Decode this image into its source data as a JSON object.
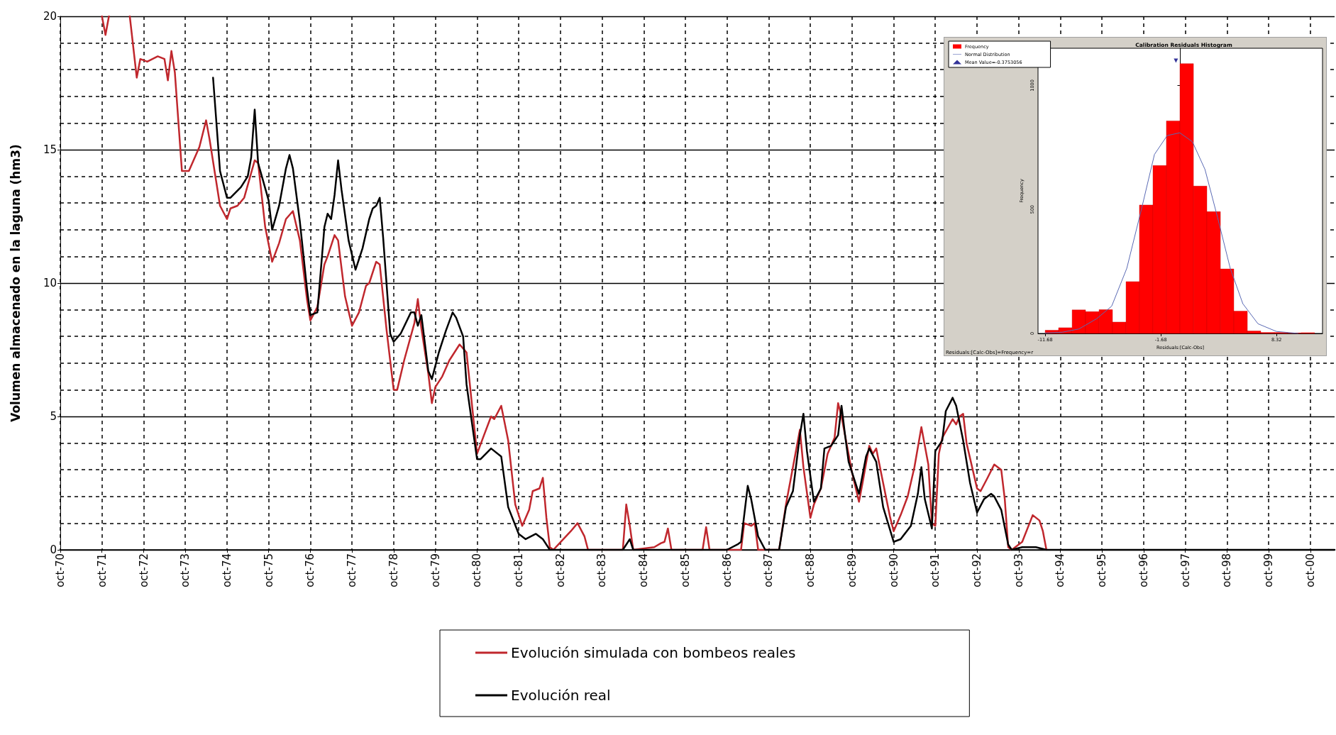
{
  "chart_data": [
    {
      "type": "line",
      "ylabel": "Volumen almacenado en la laguna (hm3)",
      "series": [
        {
          "name": "Evolución simulada con bombeos reales",
          "color": "#c0272d",
          "x": [
            "1971-10",
            "1971-11",
            "1971-12",
            "1972-02",
            "1972-06",
            "1972-08",
            "1972-09",
            "1972-11",
            "1973-02",
            "1973-04",
            "1973-05",
            "1973-06",
            "1973-07",
            "1973-09",
            "1973-11",
            "1974-02",
            "1974-04",
            "1974-05",
            "1974-08",
            "1974-10",
            "1974-11",
            "1975-01",
            "1975-03",
            "1975-06",
            "1975-07",
            "1975-09",
            "1975-11",
            "1976-01",
            "1976-03",
            "1976-05",
            "1976-07",
            "1976-09",
            "1976-10",
            "1976-12",
            "1977-02",
            "1977-03",
            "1977-05",
            "1977-06",
            "1977-08",
            "1977-10",
            "1977-12",
            "1978-02",
            "1978-03",
            "1978-05",
            "1978-06",
            "1978-08",
            "1978-10",
            "1978-11",
            "1979-01",
            "1979-04",
            "1979-05",
            "1979-06",
            "1979-08",
            "1979-09",
            "1979-10",
            "1979-12",
            "1980-02",
            "1980-05",
            "1980-07",
            "1980-10",
            "1980-12",
            "1981-02",
            "1981-03",
            "1981-05",
            "1981-07",
            "1981-09",
            "1981-11",
            "1982-01",
            "1982-02",
            "1982-04",
            "1982-05",
            "1982-06",
            "1982-07",
            "1982-08",
            "1983-01",
            "1983-03",
            "1983-05",
            "1983-06",
            "1984-04",
            "1984-05",
            "1984-06",
            "1984-07",
            "1985-01",
            "1985-03",
            "1985-04",
            "1985-05",
            "1985-06",
            "1986-03",
            "1986-04",
            "1986-05",
            "1987-02",
            "1987-03",
            "1987-05",
            "1987-06",
            "1987-07",
            "1988-01",
            "1988-03",
            "1988-05",
            "1988-07",
            "1988-08",
            "1988-10",
            "1988-11",
            "1989-01",
            "1989-03",
            "1989-05",
            "1989-06",
            "1989-07",
            "1989-10",
            "1989-12",
            "1990-01",
            "1990-03",
            "1990-04",
            "1990-05",
            "1990-07",
            "1990-09",
            "1990-10",
            "1990-12",
            "1991-02",
            "1991-04",
            "1991-06",
            "1991-08",
            "1991-09",
            "1991-10",
            "1991-11",
            "1991-12",
            "1992-03",
            "1992-04",
            "1992-05",
            "1992-06",
            "1992-07",
            "1992-10",
            "1992-11",
            "1993-01",
            "1993-03",
            "1993-05",
            "1993-06",
            "1993-07",
            "1993-08",
            "1993-11",
            "1994-02",
            "1994-04",
            "1994-05",
            "1994-06"
          ],
          "values": [
            20,
            19.3,
            20,
            null,
            20,
            17.7,
            18.4,
            18.3,
            18.5,
            18.4,
            17.6,
            18.7,
            17.9,
            14.2,
            14.2,
            15.1,
            16.1,
            15.4,
            12.9,
            12.4,
            12.8,
            12.9,
            13.2,
            14.6,
            14.5,
            12.1,
            10.8,
            11.5,
            12.4,
            12.7,
            11.6,
            9.4,
            8.6,
            9.1,
            10.7,
            11.0,
            11.8,
            11.6,
            9.5,
            8.4,
            8.9,
            9.9,
            10.0,
            10.8,
            10.7,
            8.2,
            6.0,
            6.0,
            7.1,
            8.5,
            9.4,
            8.3,
            6.6,
            5.5,
            6.1,
            6.5,
            7.1,
            7.7,
            7.4,
            3.6,
            4.3,
            5.0,
            4.9,
            5.4,
            4.1,
            1.7,
            0.9,
            1.5,
            2.2,
            2.3,
            2.7,
            1.2,
            0.1,
            0,
            0.7,
            1.0,
            0.5,
            0,
            0,
            1.7,
            0.9,
            0,
            0.1,
            0.25,
            0.3,
            0.8,
            0,
            0,
            0.85,
            0,
            0,
            1.0,
            0.9,
            1.0,
            0,
            0,
            1.7,
            3.1,
            4.5,
            3.1,
            1.2,
            1.7,
            2.3,
            3.6,
            4.2,
            5.5,
            5.0,
            2.9,
            1.8,
            2.5,
            3.9,
            3.6,
            3.8,
            2.5,
            1.2,
            0.7,
            1.3,
            2.0,
            3.1,
            4.6,
            3.2,
            1.0,
            0.9,
            3.6,
            4.2,
            4.9,
            4.7,
            5.0,
            5.1,
            4.0,
            2.3,
            2.2,
            2.7,
            3.2,
            3.0,
            1.9,
            0.1,
            0,
            0.3,
            1.3,
            1.1,
            0.7,
            0
          ]
        },
        {
          "name": "Evolución real",
          "color": "#000000",
          "x": [
            "1974-06",
            "1974-08",
            "1974-10",
            "1974-11",
            "1975-02",
            "1975-04",
            "1975-05",
            "1975-06",
            "1975-07",
            "1975-10",
            "1975-11",
            "1976-01",
            "1976-03",
            "1976-04",
            "1976-05",
            "1976-07",
            "1976-09",
            "1976-10",
            "1976-12",
            "1977-02",
            "1977-03",
            "1977-04",
            "1977-05",
            "1977-06",
            "1977-07",
            "1977-09",
            "1977-11",
            "1978-01",
            "1978-03",
            "1978-04",
            "1978-05",
            "1978-06",
            "1978-07",
            "1978-09",
            "1978-10",
            "1978-12",
            "1979-03",
            "1979-04",
            "1979-05",
            "1979-06",
            "1979-08",
            "1979-09",
            "1979-11",
            "1980-01",
            "1980-03",
            "1980-04",
            "1980-06",
            "1980-07",
            "1980-10",
            "1980-11",
            "1981-02",
            "1981-05",
            "1981-07",
            "1981-10",
            "1981-12",
            "1982-03",
            "1982-05",
            "1982-07",
            "1984-04",
            "1984-06",
            "1984-07",
            "1986-10",
            "1987-01",
            "1987-02",
            "1987-04",
            "1987-05",
            "1987-07",
            "1987-09",
            "1988-01",
            "1988-03",
            "1988-05",
            "1988-07",
            "1988-08",
            "1988-09",
            "1988-11",
            "1989-01",
            "1989-02",
            "1989-04",
            "1989-06",
            "1989-07",
            "1989-08",
            "1989-09",
            "1989-12",
            "1990-02",
            "1990-03",
            "1990-05",
            "1990-07",
            "1990-10",
            "1990-12",
            "1991-03",
            "1991-05",
            "1991-06",
            "1991-07",
            "1991-09",
            "1991-10",
            "1991-12",
            "1992-01",
            "1992-03",
            "1992-04",
            "1992-06",
            "1992-08",
            "1992-10",
            "1992-12",
            "1993-02",
            "1993-03",
            "1993-05",
            "1993-07",
            "1993-08",
            "1993-11",
            "1994-03",
            "1994-06",
            "2001-05"
          ],
          "values": [
            17.7,
            14.2,
            13.2,
            13.2,
            13.6,
            14.0,
            14.7,
            16.5,
            14.5,
            13.1,
            12.0,
            12.9,
            14.3,
            14.8,
            14.3,
            12.3,
            9.8,
            8.8,
            8.9,
            12.1,
            12.6,
            12.4,
            13.3,
            14.6,
            13.5,
            11.6,
            10.5,
            11.3,
            12.4,
            12.8,
            12.9,
            13.2,
            11.7,
            8.1,
            7.8,
            8.1,
            8.9,
            8.9,
            8.4,
            8.8,
            6.7,
            6.4,
            7.4,
            8.2,
            8.9,
            8.7,
            8.0,
            6.2,
            3.4,
            3.4,
            3.8,
            3.5,
            1.6,
            0.6,
            0.4,
            0.6,
            0.4,
            0,
            0,
            0.4,
            0,
            0,
            0.2,
            0.3,
            2.4,
            1.9,
            0.5,
            0,
            0,
            1.6,
            2.2,
            4.3,
            5.1,
            3.7,
            1.8,
            2.3,
            3.8,
            3.9,
            4.3,
            5.4,
            4.3,
            3.3,
            2.1,
            3.5,
            3.8,
            3.3,
            1.6,
            0.3,
            0.4,
            0.9,
            2.1,
            3.1,
            1.9,
            0.8,
            3.7,
            4.1,
            5.2,
            5.7,
            5.4,
            4.1,
            2.5,
            1.4,
            1.9,
            2.1,
            2.0,
            1.5,
            0.2,
            0,
            0.1,
            0.1,
            0,
            0
          ]
        }
      ],
      "xlim": [
        "1970-10",
        "2001-05"
      ],
      "xticks": [
        {
          "value": "1970-10",
          "label": "oct-70"
        },
        {
          "value": "1971-10",
          "label": "oct-71"
        },
        {
          "value": "1972-10",
          "label": "oct-72"
        },
        {
          "value": "1973-10",
          "label": "oct-73"
        },
        {
          "value": "1974-10",
          "label": "oct-74"
        },
        {
          "value": "1975-10",
          "label": "oct-75"
        },
        {
          "value": "1976-10",
          "label": "oct-76"
        },
        {
          "value": "1977-10",
          "label": "oct-77"
        },
        {
          "value": "1978-10",
          "label": "oct-78"
        },
        {
          "value": "1979-10",
          "label": "oct-79"
        },
        {
          "value": "1980-10",
          "label": "oct-80"
        },
        {
          "value": "1981-10",
          "label": "oct-81"
        },
        {
          "value": "1982-10",
          "label": "oct-82"
        },
        {
          "value": "1983-10",
          "label": "oct-83"
        },
        {
          "value": "1984-10",
          "label": "oct-84"
        },
        {
          "value": "1985-10",
          "label": "oct-85"
        },
        {
          "value": "1986-10",
          "label": "oct-86"
        },
        {
          "value": "1987-10",
          "label": "oct-87"
        },
        {
          "value": "1988-10",
          "label": "oct-88"
        },
        {
          "value": "1989-10",
          "label": "oct-89"
        },
        {
          "value": "1990-10",
          "label": "oct-90"
        },
        {
          "value": "1991-10",
          "label": "oct-91"
        },
        {
          "value": "1992-10",
          "label": "oct-92"
        },
        {
          "value": "1993-10",
          "label": "oct-93"
        },
        {
          "value": "1994-10",
          "label": "oct-94"
        },
        {
          "value": "1995-10",
          "label": "oct-95"
        },
        {
          "value": "1996-10",
          "label": "oct-96"
        },
        {
          "value": "1997-10",
          "label": "oct-97"
        },
        {
          "value": "1998-10",
          "label": "oct-98"
        },
        {
          "value": "1999-10",
          "label": "oct-99"
        },
        {
          "value": "2000-10",
          "label": "oct-00"
        }
      ],
      "ylim": [
        0,
        20
      ],
      "yticks": [
        0,
        5,
        10,
        15,
        20
      ],
      "grid": true,
      "legend": "bottom",
      "marker": "none",
      "line_style": "solid"
    },
    {
      "type": "histogram",
      "title": "Calibration Residuals Histogram",
      "xlabel": "Residuals:[Calc-Obs]",
      "ylabel": "Frequency",
      "series": [
        {
          "type": "histogram",
          "name": "Frequency",
          "color": "#ff0000",
          "bins": [
            -11.68,
            -10.52,
            -9.35,
            -8.19,
            -7.02,
            -5.86,
            -4.69,
            -3.53,
            -2.36,
            -1.2,
            -0.03,
            1.14,
            2.3,
            3.47,
            4.63,
            5.8,
            6.96,
            8.13,
            9.29,
            10.46,
            11.62
          ],
          "values": [
            13,
            23,
            95,
            88,
            96,
            46,
            209,
            518,
            677,
            857,
            1088,
            594,
            491,
            260,
            90,
            10,
            4,
            4,
            2,
            3
          ]
        },
        {
          "type": "line",
          "name": "Normal Distribution",
          "color": "#5a6ab4",
          "marker": "none",
          "x": [
            -11.68,
            -10.2,
            -8.77,
            -7.24,
            -5.93,
            -4.62,
            -3.32,
            -2.23,
            -1.13,
            -0.04,
            1.05,
            2.14,
            3.23,
            4.32,
            5.41,
            6.72,
            8.32,
            10.2
          ],
          "values": [
            2,
            5,
            18,
            59,
            110,
            263,
            508,
            722,
            798,
            809,
            773,
            661,
            467,
            263,
            120,
            39,
            8,
            0
          ]
        },
        {
          "type": "scatter",
          "name": "Mean Value=-0.3753056",
          "color": "#000080",
          "marker": "triangle",
          "x": [
            -0.3753056
          ],
          "values": [
            1100
          ]
        }
      ],
      "xlim": [
        -12.3,
        12.3
      ],
      "xticks": [
        -11.68,
        -1.68,
        8.32
      ],
      "ylim": [
        0,
        1150
      ],
      "yticks": [
        0,
        500,
        1000
      ],
      "legend": "top left",
      "annotations": [
        "Residuals:[Calc-Obs]=Frequency=r"
      ]
    }
  ]
}
